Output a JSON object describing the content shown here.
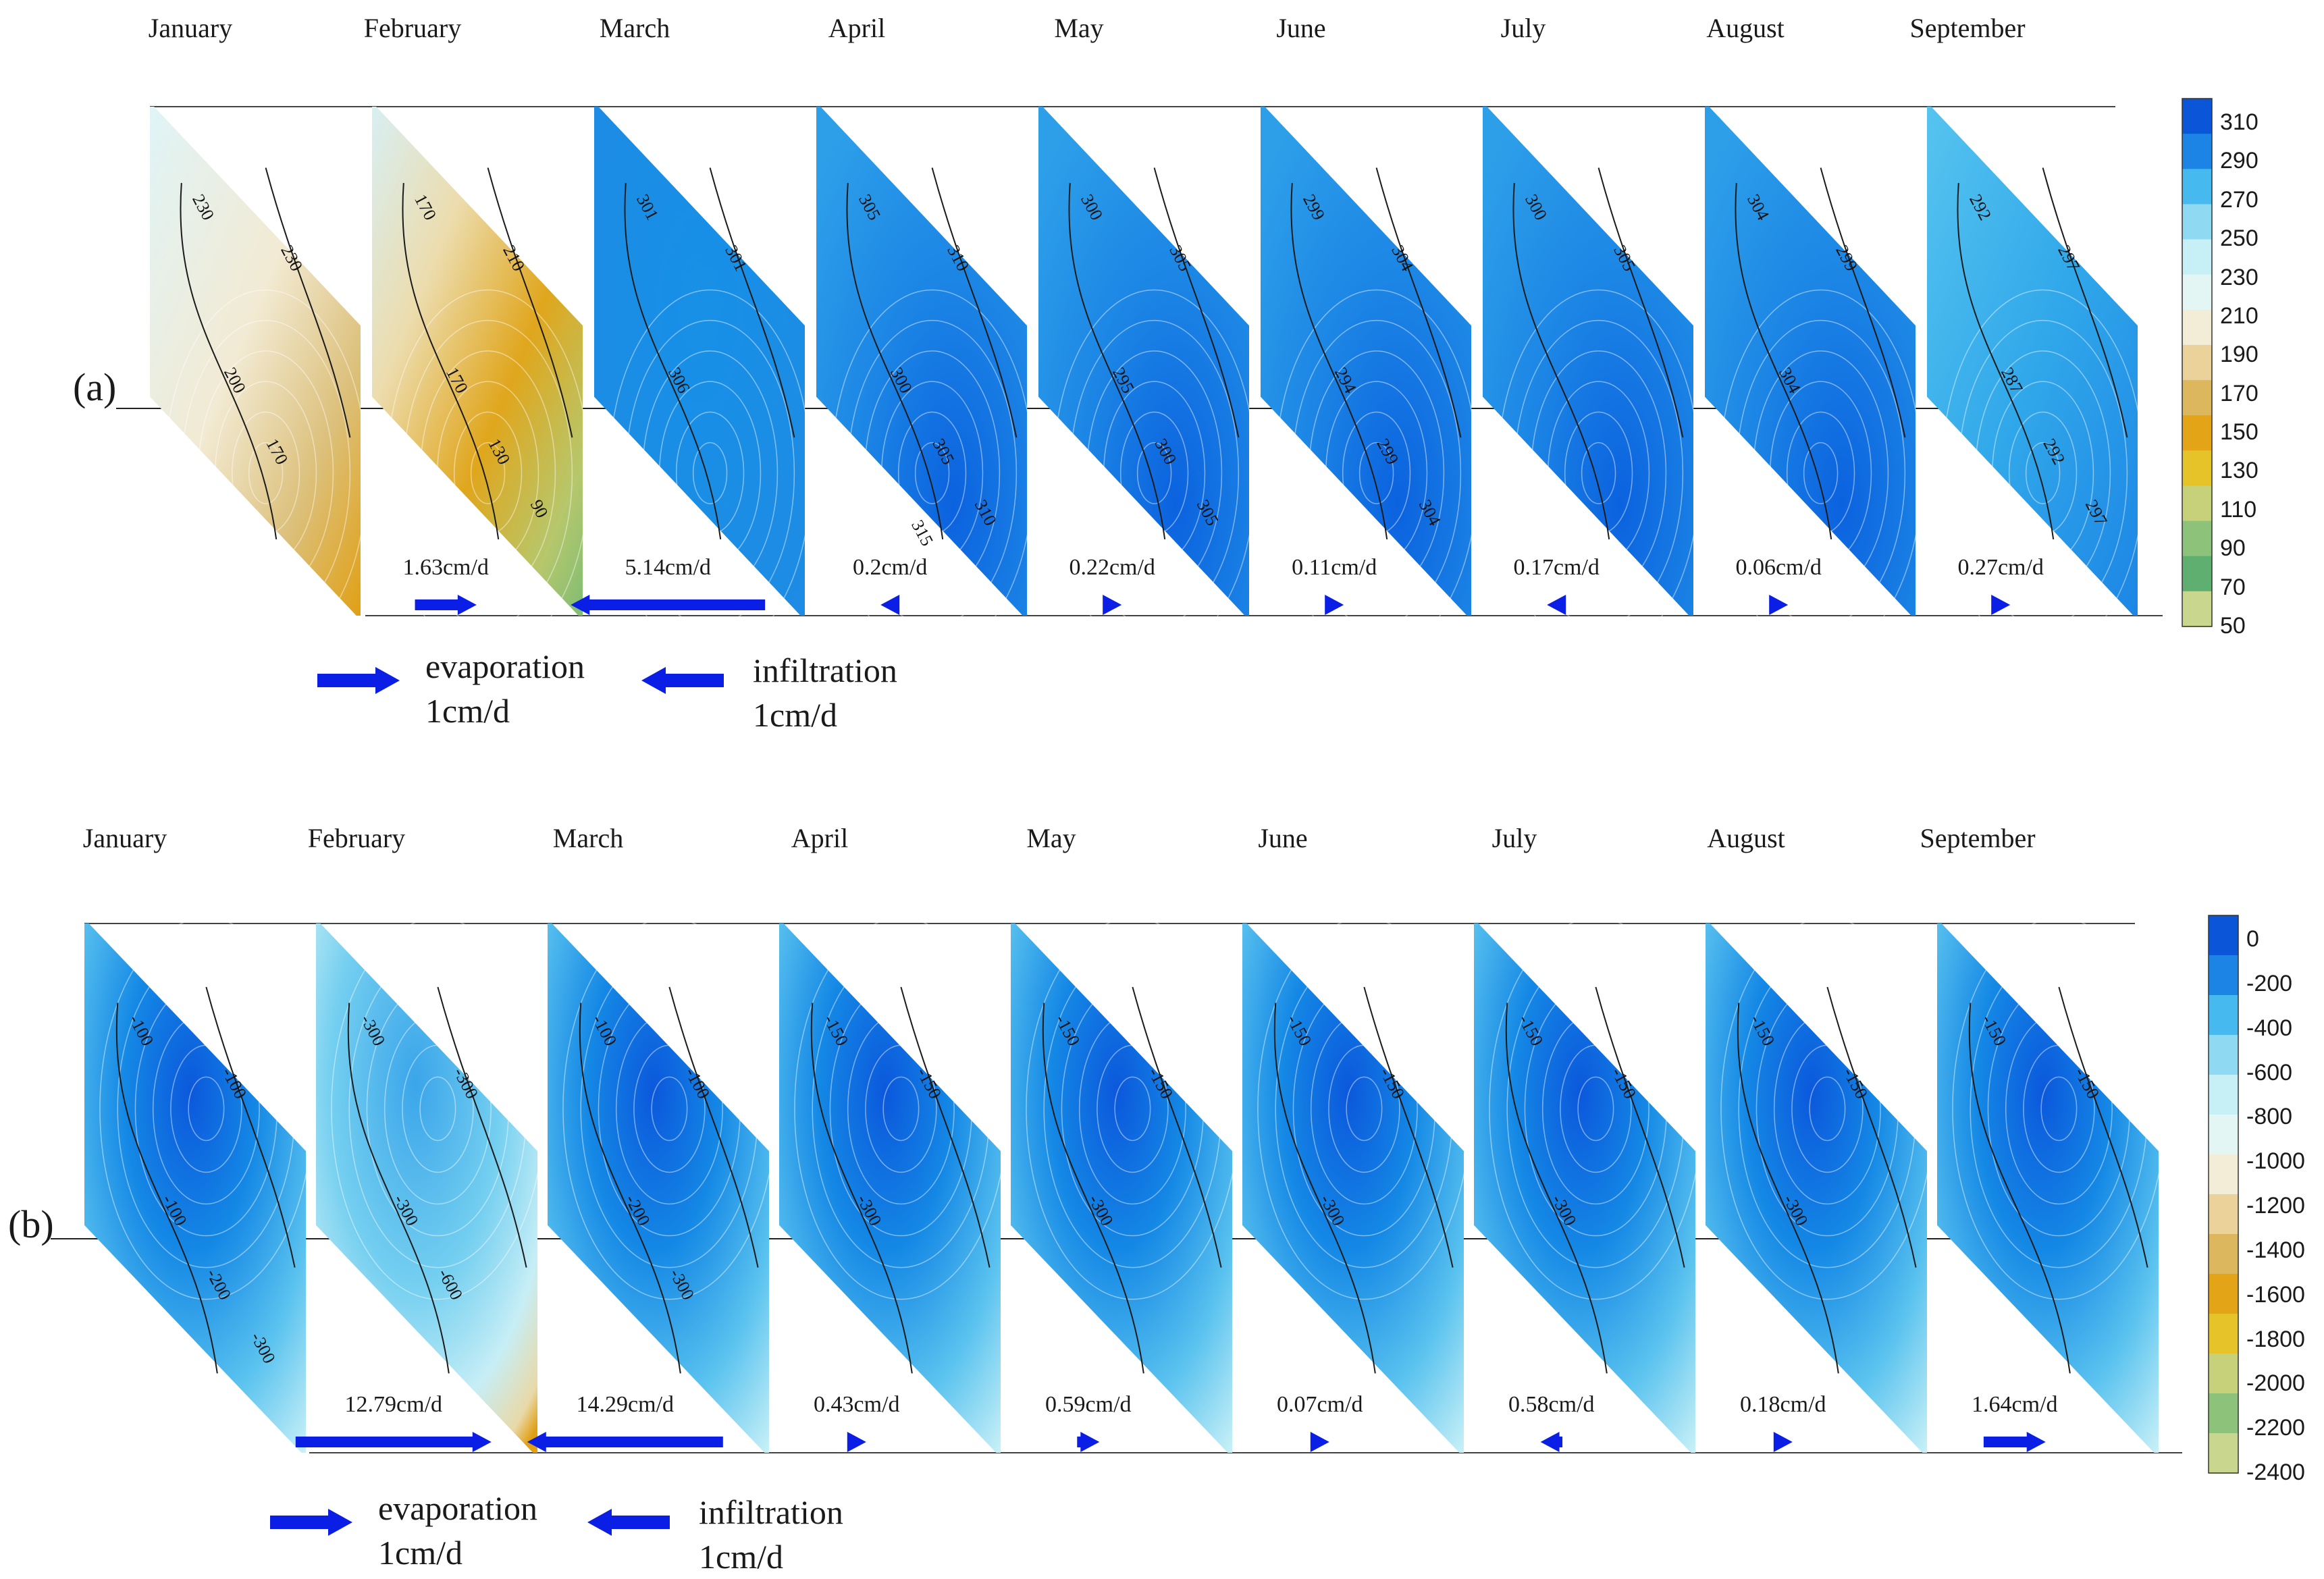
{
  "panels": [
    {
      "label": "(a)",
      "months": [
        "January",
        "February",
        "March",
        "April",
        "May",
        "June",
        "July",
        "August",
        "September"
      ],
      "rates": [
        "1.63cm/d",
        "5.14cm/d",
        "0.2cm/d",
        "0.22cm/d",
        "0.11cm/d",
        "0.17cm/d",
        "0.06cm/d",
        "0.27cm/d"
      ],
      "rate_values_cm_per_day": [
        1.63,
        5.14,
        0.2,
        0.22,
        0.11,
        0.17,
        0.06,
        0.27
      ],
      "directions": [
        "evaporation",
        "infiltration",
        "infiltration",
        "evaporation",
        "evaporation",
        "infiltration",
        "evaporation",
        "evaporation"
      ],
      "legend": {
        "evaporation": "evaporation",
        "infiltration": "infiltration",
        "unit": "1cm/d"
      },
      "colorbar_ticks": [
        "310",
        "290",
        "270",
        "250",
        "230",
        "210",
        "190",
        "170",
        "150",
        "130",
        "110",
        "90",
        "70",
        "50"
      ],
      "contour_labels": [
        [
          "230",
          "230",
          "200",
          "170"
        ],
        [
          "170",
          "210",
          "170",
          "130",
          "90"
        ],
        [
          "301",
          "301",
          "306"
        ],
        [
          "305",
          "310",
          "300",
          "305",
          "310",
          "315"
        ],
        [
          "300",
          "305",
          "295",
          "300",
          "305"
        ],
        [
          "299",
          "304",
          "294",
          "299",
          "304"
        ],
        [
          "300",
          "305"
        ],
        [
          "304",
          "299",
          "304"
        ],
        [
          "292",
          "297",
          "287",
          "292",
          "297"
        ]
      ]
    },
    {
      "label": "(b)",
      "months": [
        "January",
        "February",
        "March",
        "April",
        "May",
        "June",
        "July",
        "August",
        "September"
      ],
      "rates": [
        "12.79cm/d",
        "14.29cm/d",
        "0.43cm/d",
        "0.59cm/d",
        "0.07cm/d",
        "0.58cm/d",
        "0.18cm/d",
        "1.64cm/d"
      ],
      "rate_values_cm_per_day": [
        12.79,
        14.29,
        0.43,
        0.59,
        0.07,
        0.58,
        0.18,
        1.64
      ],
      "directions": [
        "evaporation",
        "infiltration",
        "evaporation",
        "evaporation",
        "evaporation",
        "infiltration",
        "evaporation",
        "evaporation"
      ],
      "legend": {
        "evaporation": "evaporation",
        "infiltration": "infiltration",
        "unit": "1cm/d"
      },
      "colorbar_ticks": [
        "0",
        "-200",
        "-400",
        "-600",
        "-800",
        "-1000",
        "-1200",
        "-1400",
        "-1600",
        "-1800",
        "-2000",
        "-2200",
        "-2400"
      ],
      "contour_labels": [
        [
          "-100",
          "-100",
          "-100",
          "-200",
          "-300"
        ],
        [
          "-300",
          "-300",
          "-300",
          "-600"
        ],
        [
          "-100",
          "-100",
          "-200",
          "-300"
        ],
        [
          "-150",
          "-150",
          "-300"
        ],
        [
          "-150",
          "-150",
          "-300"
        ],
        [
          "-150",
          "-150",
          "-300"
        ],
        [
          "-150",
          "-150",
          "-300"
        ],
        [
          "-150",
          "-150",
          "-300"
        ],
        [
          "-150",
          "-150"
        ]
      ]
    }
  ],
  "colors": {
    "arrow": "#0a1ee6",
    "blue_dark": "#0a5fe0",
    "blue_mid": "#1a8fe6",
    "blue_light": "#4fc1ef",
    "cyan_pale": "#bfeff7",
    "tan": "#e9d7ad",
    "orange": "#e3a417",
    "green": "#8cc27a"
  }
}
